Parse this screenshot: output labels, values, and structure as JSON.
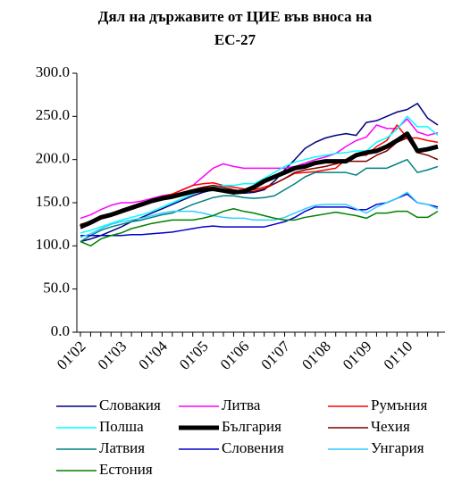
{
  "chart_data": {
    "type": "line",
    "title": "Дял на държавите от ЦИЕ във вноса на ЕС-27",
    "categories": [
      "01'02",
      null,
      null,
      null,
      "01'03",
      null,
      null,
      null,
      "01'04",
      null,
      null,
      null,
      "01'05",
      null,
      null,
      null,
      "01'06",
      null,
      null,
      null,
      "01'07",
      null,
      null,
      null,
      "01'08",
      null,
      null,
      null,
      "01'09",
      null,
      null,
      null,
      "01'10",
      null,
      null,
      null
    ],
    "ylim": [
      0,
      300
    ],
    "yticks": [
      {
        "value": 0,
        "label": "0.0"
      },
      {
        "value": 50,
        "label": "50.0"
      },
      {
        "value": 100,
        "label": "100.0"
      },
      {
        "value": 150,
        "label": "150.0"
      },
      {
        "value": 200,
        "label": "200.0"
      },
      {
        "value": 250,
        "label": "250.0"
      },
      {
        "value": 300,
        "label": "300.0"
      }
    ],
    "grid": false,
    "legend": "bottom",
    "series": [
      {
        "name": "Словакия",
        "color": "#000080",
        "width": 1.5,
        "values": [
          105,
          108,
          112,
          117,
          122,
          128,
          133,
          138,
          143,
          148,
          153,
          158,
          162,
          165,
          165,
          163,
          161,
          162,
          165,
          175,
          188,
          200,
          213,
          220,
          225,
          228,
          230,
          228,
          243,
          245,
          250,
          255,
          258,
          265,
          248,
          240
        ]
      },
      {
        "name": "Литва",
        "color": "#ff00ff",
        "width": 1.5,
        "values": [
          132,
          136,
          142,
          147,
          150,
          150,
          152,
          155,
          158,
          160,
          165,
          170,
          180,
          190,
          195,
          192,
          190,
          190,
          190,
          190,
          190,
          192,
          196,
          200,
          203,
          207,
          215,
          222,
          226,
          240,
          236,
          236,
          247,
          232,
          228,
          231
        ]
      },
      {
        "name": "Румъния",
        "color": "#ff0000",
        "width": 1.5,
        "values": [
          120,
          125,
          132,
          137,
          142,
          146,
          150,
          153,
          157,
          160,
          165,
          170,
          172,
          173,
          170,
          168,
          166,
          165,
          168,
          172,
          178,
          184,
          185,
          186,
          188,
          190,
          200,
          205,
          205,
          215,
          222,
          240,
          225,
          225,
          222,
          220
        ]
      },
      {
        "name": "Полша",
        "color": "#00ffff",
        "width": 1.5,
        "values": [
          115,
          118,
          122,
          126,
          130,
          133,
          136,
          140,
          145,
          150,
          155,
          160,
          165,
          168,
          170,
          170,
          172,
          172,
          178,
          185,
          192,
          197,
          200,
          203,
          205,
          207,
          208,
          210,
          210,
          220,
          225,
          235,
          250,
          238,
          238,
          228
        ]
      },
      {
        "name": "България",
        "color": "#000000",
        "width": 5,
        "values": [
          122,
          127,
          133,
          136,
          140,
          144,
          148,
          152,
          155,
          157,
          160,
          163,
          165,
          166,
          164,
          162,
          163,
          168,
          175,
          180,
          185,
          190,
          192,
          196,
          198,
          198,
          198,
          205,
          208,
          210,
          215,
          222,
          230,
          210,
          212,
          215
        ]
      },
      {
        "name": "Чехия",
        "color": "#800000",
        "width": 1.5,
        "values": [
          125,
          128,
          133,
          137,
          142,
          146,
          150,
          153,
          157,
          159,
          162,
          165,
          168,
          170,
          168,
          165,
          163,
          163,
          166,
          172,
          178,
          185,
          188,
          190,
          192,
          195,
          198,
          198,
          198,
          205,
          210,
          220,
          225,
          208,
          205,
          200
        ]
      },
      {
        "name": "Латвия",
        "color": "#008080",
        "width": 1.5,
        "values": [
          105,
          112,
          118,
          122,
          125,
          128,
          130,
          133,
          136,
          138,
          143,
          148,
          152,
          156,
          158,
          158,
          156,
          155,
          156,
          158,
          165,
          172,
          180,
          185,
          185,
          185,
          185,
          182,
          190,
          190,
          190,
          195,
          200,
          185,
          188,
          192
        ]
      },
      {
        "name": "Словения",
        "color": "#0000cc",
        "width": 1.5,
        "values": [
          112,
          112,
          112,
          112,
          112,
          113,
          113,
          114,
          115,
          116,
          118,
          120,
          122,
          123,
          122,
          122,
          122,
          122,
          122,
          125,
          128,
          133,
          140,
          145,
          145,
          145,
          145,
          142,
          142,
          148,
          150,
          155,
          160,
          150,
          148,
          145
        ]
      },
      {
        "name": "Унгария",
        "color": "#33ccff",
        "width": 1.5,
        "values": [
          110,
          114,
          120,
          125,
          128,
          130,
          132,
          135,
          138,
          140,
          140,
          140,
          138,
          135,
          133,
          132,
          132,
          130,
          130,
          130,
          133,
          138,
          143,
          147,
          148,
          148,
          148,
          143,
          138,
          145,
          150,
          155,
          162,
          150,
          148,
          143
        ]
      },
      {
        "name": "Естония",
        "color": "#008000",
        "width": 1.5,
        "values": [
          105,
          100,
          108,
          112,
          115,
          120,
          123,
          126,
          128,
          130,
          130,
          130,
          132,
          135,
          140,
          143,
          140,
          138,
          135,
          132,
          130,
          130,
          133,
          135,
          137,
          139,
          137,
          135,
          132,
          138,
          138,
          140,
          140,
          133,
          133,
          140
        ]
      }
    ]
  }
}
